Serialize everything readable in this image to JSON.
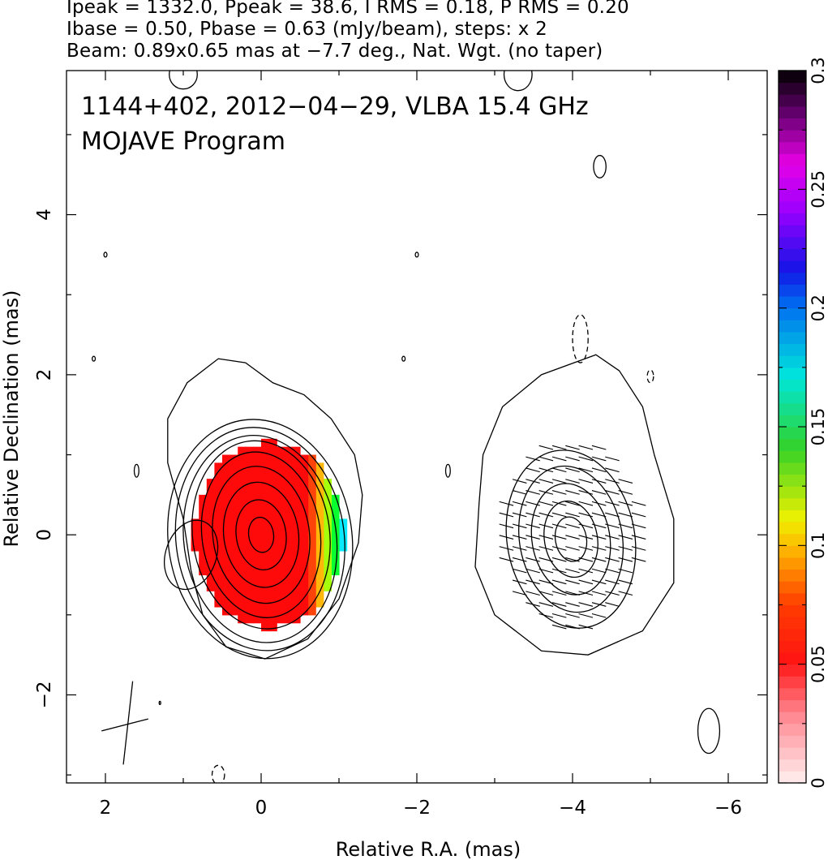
{
  "header": {
    "line1": "Ipeak = 1332.0, Ppeak = 38.6, I RMS = 0.18, P RMS = 0.20",
    "line2": "Ibase = 0.50, Pbase = 0.63 (mJy/beam), steps: x 2",
    "line3": "Beam: 0.89x0.65 mas at −7.7 deg., Nat. Wgt. (no taper)"
  },
  "chart_data": {
    "type": "heatmap",
    "title": "1144+402, 2012−04−29, VLBA 15.4 GHz",
    "subtitle": "MOJAVE Program",
    "xlabel": "Relative R.A. (mas)",
    "ylabel": "Relative Declination (mas)",
    "xlim": [
      2.5,
      -6.5
    ],
    "ylim": [
      -3.1,
      5.8
    ],
    "x_ticks": [
      2,
      0,
      -2,
      -4,
      -6
    ],
    "x_tick_labels": [
      "2",
      "0",
      "−2",
      "−4",
      "−6"
    ],
    "y_ticks": [
      -2,
      0,
      2,
      4
    ],
    "y_tick_labels": [
      "−2",
      "0",
      "2",
      "4"
    ],
    "colorbar": {
      "range": [
        0,
        0.3
      ],
      "ticks": [
        0,
        0.05,
        0.1,
        0.15,
        0.2,
        0.25,
        0.3
      ],
      "tick_labels": [
        "0",
        "0.05",
        "0.1",
        "0.15",
        "0.2",
        "0.25",
        "0.3"
      ]
    },
    "stokes_I_contours": {
      "center": [
        0,
        0
      ],
      "radii_x": [
        1.18,
        1.08,
        0.98,
        0.88,
        0.76,
        0.62,
        0.48,
        0.32,
        0.16
      ],
      "radii_y": [
        1.5,
        1.4,
        1.3,
        1.18,
        1.04,
        0.86,
        0.66,
        0.44,
        0.22
      ],
      "outer_contour": [
        [
          0.55,
          2.2
        ],
        [
          0.2,
          2.15
        ],
        [
          -0.15,
          1.9
        ],
        [
          -0.55,
          1.75
        ],
        [
          -0.9,
          1.45
        ],
        [
          -1.2,
          1.0
        ],
        [
          -1.3,
          0.5
        ],
        [
          -1.25,
          -0.1
        ],
        [
          -1.0,
          -0.8
        ],
        [
          -0.6,
          -1.3
        ],
        [
          -0.05,
          -1.55
        ],
        [
          0.45,
          -1.4
        ],
        [
          0.75,
          -1.0
        ],
        [
          0.9,
          -0.45
        ],
        [
          1.0,
          0.2
        ],
        [
          1.2,
          0.9
        ],
        [
          1.2,
          1.45
        ],
        [
          0.95,
          1.9
        ]
      ]
    },
    "fractional_polarization_region": {
      "center": [
        0,
        0
      ],
      "extent_x": [
        -1.05,
        0.85
      ],
      "extent_y": [
        -1.15,
        1.15
      ],
      "value_range": [
        0.03,
        0.18
      ]
    },
    "polarization_panel": {
      "center": [
        -4,
        0
      ],
      "outer_contour": [
        [
          -4.3,
          2.25
        ],
        [
          -3.6,
          2.0
        ],
        [
          -3.1,
          1.6
        ],
        [
          -2.85,
          1.0
        ],
        [
          -2.8,
          0.4
        ],
        [
          -2.75,
          -0.4
        ],
        [
          -3.0,
          -1.0
        ],
        [
          -3.6,
          -1.45
        ],
        [
          -4.2,
          -1.5
        ],
        [
          -4.9,
          -1.2
        ],
        [
          -5.3,
          -0.6
        ],
        [
          -5.3,
          0.2
        ],
        [
          -5.05,
          1.0
        ],
        [
          -4.9,
          1.6
        ],
        [
          -4.6,
          2.05
        ]
      ],
      "contour_radii_x": [
        0.82,
        0.66,
        0.5,
        0.34,
        0.2
      ],
      "contour_radii_y": [
        1.12,
        0.92,
        0.7,
        0.48,
        0.28
      ],
      "evpa_deg": -15
    },
    "beam": {
      "major_mas": 0.89,
      "minor_mas": 0.65,
      "pa_deg": -7.7,
      "center": [
        0.9,
        -0.25
      ]
    },
    "cross_marker": {
      "center": [
        1.7,
        -2.35
      ]
    }
  }
}
